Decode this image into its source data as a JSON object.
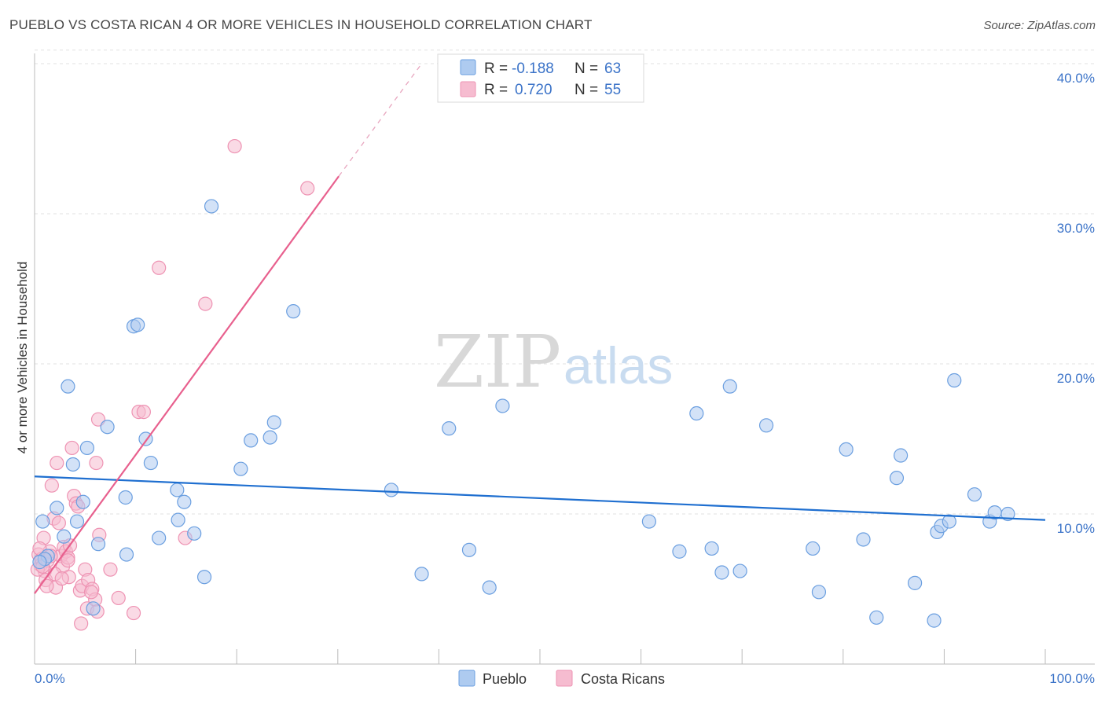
{
  "title": "PUEBLO VS COSTA RICAN 4 OR MORE VEHICLES IN HOUSEHOLD CORRELATION CHART",
  "source": "Source: ZipAtlas.com",
  "colors": {
    "pueblo_fill": "#aecbf0",
    "pueblo_stroke": "#6b9fe0",
    "pueblo_line": "#1f6fd0",
    "costa_fill": "#f6bcd0",
    "costa_stroke": "#ee93b3",
    "costa_line": "#e8608e",
    "value_text": "#3b73c8"
  },
  "legend": {
    "r_label": "R =",
    "n_label": "N =",
    "series": [
      {
        "r": "-0.188",
        "n": "63"
      },
      {
        "r": "0.720",
        "n": "55"
      }
    ]
  },
  "watermark": {
    "zip": "ZIP",
    "atlas": "atlas"
  },
  "chart_data": {
    "type": "scatter",
    "title": "PUEBLO VS COSTA RICAN 4 OR MORE VEHICLES IN HOUSEHOLD CORRELATION CHART",
    "xlabel": "",
    "ylabel": "4 or more Vehicles in Household",
    "xlim": [
      0,
      100
    ],
    "ylim": [
      0,
      42
    ],
    "x_tick_labels": [
      "0.0%",
      "100.0%"
    ],
    "y_ticks": [
      10,
      20,
      30,
      40
    ],
    "y_tick_labels": [
      "10.0%",
      "20.0%",
      "30.0%",
      "40.0%"
    ],
    "grid": true,
    "legend_position": "top-center",
    "series": [
      {
        "name": "Pueblo",
        "r": -0.188,
        "n": 63,
        "trend": {
          "x0": 0,
          "y0": 12.5,
          "x1": 100,
          "y1": 9.6
        },
        "points": [
          [
            0.8,
            9.5
          ],
          [
            1.3,
            7.2
          ],
          [
            2.2,
            10.4
          ],
          [
            2.9,
            8.5
          ],
          [
            3.3,
            18.5
          ],
          [
            3.8,
            13.3
          ],
          [
            4.2,
            9.5
          ],
          [
            4.8,
            10.8
          ],
          [
            5.2,
            14.4
          ],
          [
            6.3,
            8.0
          ],
          [
            7.2,
            15.8
          ],
          [
            9.0,
            11.1
          ],
          [
            9.1,
            7.3
          ],
          [
            9.8,
            22.5
          ],
          [
            10.2,
            22.6
          ],
          [
            11.0,
            15.0
          ],
          [
            11.5,
            13.4
          ],
          [
            12.3,
            8.4
          ],
          [
            14.1,
            11.6
          ],
          [
            14.2,
            9.6
          ],
          [
            14.8,
            10.8
          ],
          [
            15.8,
            8.7
          ],
          [
            16.8,
            5.8
          ],
          [
            17.5,
            30.5
          ],
          [
            20.4,
            13.0
          ],
          [
            21.4,
            14.9
          ],
          [
            23.3,
            15.1
          ],
          [
            23.7,
            16.1
          ],
          [
            25.6,
            23.5
          ],
          [
            35.3,
            11.6
          ],
          [
            38.3,
            6.0
          ],
          [
            41.0,
            15.7
          ],
          [
            43.0,
            7.6
          ],
          [
            45.0,
            5.1
          ],
          [
            46.3,
            17.2
          ],
          [
            60.8,
            9.5
          ],
          [
            63.8,
            7.5
          ],
          [
            65.5,
            16.7
          ],
          [
            67.0,
            7.7
          ],
          [
            68.0,
            6.1
          ],
          [
            68.8,
            18.5
          ],
          [
            69.8,
            6.2
          ],
          [
            72.4,
            15.9
          ],
          [
            77.0,
            7.7
          ],
          [
            77.6,
            4.8
          ],
          [
            80.3,
            14.3
          ],
          [
            82.0,
            8.3
          ],
          [
            83.3,
            3.1
          ],
          [
            85.3,
            12.4
          ],
          [
            85.7,
            13.9
          ],
          [
            87.1,
            5.4
          ],
          [
            89.0,
            2.9
          ],
          [
            89.3,
            8.8
          ],
          [
            89.7,
            9.2
          ],
          [
            90.5,
            9.5
          ],
          [
            91.0,
            18.9
          ],
          [
            93.0,
            11.3
          ],
          [
            94.5,
            9.5
          ],
          [
            95.0,
            10.1
          ],
          [
            96.3,
            10.0
          ],
          [
            5.8,
            3.7
          ],
          [
            1.0,
            7.0
          ],
          [
            0.5,
            6.8
          ]
        ]
      },
      {
        "name": "Costa Ricans",
        "r": 0.72,
        "n": 55,
        "trend": {
          "x0": 0,
          "y0": 4.7,
          "x1": 30.1,
          "y1": 32.5
        },
        "trend_dashed": {
          "x0": 30.1,
          "y0": 32.5,
          "x1": 38.3,
          "y1": 40.0
        },
        "points": [
          [
            0.4,
            7.3
          ],
          [
            0.6,
            6.6
          ],
          [
            0.7,
            7.0
          ],
          [
            0.9,
            8.4
          ],
          [
            1.0,
            6.2
          ],
          [
            1.1,
            5.6
          ],
          [
            1.3,
            6.9
          ],
          [
            1.5,
            7.5
          ],
          [
            1.7,
            11.9
          ],
          [
            1.9,
            9.7
          ],
          [
            2.1,
            5.1
          ],
          [
            2.2,
            13.4
          ],
          [
            2.4,
            9.4
          ],
          [
            2.6,
            7.2
          ],
          [
            2.8,
            6.5
          ],
          [
            2.9,
            7.8
          ],
          [
            3.1,
            7.5
          ],
          [
            3.3,
            7.1
          ],
          [
            3.4,
            5.8
          ],
          [
            3.5,
            7.9
          ],
          [
            3.7,
            14.4
          ],
          [
            3.9,
            11.2
          ],
          [
            4.1,
            10.7
          ],
          [
            4.3,
            10.5
          ],
          [
            4.5,
            4.9
          ],
          [
            4.7,
            5.2
          ],
          [
            5.0,
            6.3
          ],
          [
            5.2,
            3.7
          ],
          [
            5.3,
            5.6
          ],
          [
            5.7,
            5.0
          ],
          [
            6.0,
            4.3
          ],
          [
            6.2,
            3.5
          ],
          [
            6.4,
            8.6
          ],
          [
            7.5,
            6.3
          ],
          [
            8.3,
            4.4
          ],
          [
            9.8,
            3.4
          ],
          [
            10.3,
            16.8
          ],
          [
            10.8,
            16.8
          ],
          [
            12.3,
            26.4
          ],
          [
            14.9,
            8.4
          ],
          [
            16.9,
            24.0
          ],
          [
            19.8,
            34.5
          ],
          [
            27.0,
            31.7
          ],
          [
            1.2,
            5.2
          ],
          [
            2.0,
            6.0
          ],
          [
            0.3,
            6.3
          ],
          [
            4.6,
            2.7
          ],
          [
            6.1,
            13.4
          ],
          [
            6.3,
            16.3
          ],
          [
            3.3,
            6.9
          ],
          [
            0.8,
            6.5
          ],
          [
            2.7,
            5.7
          ],
          [
            1.6,
            7.2
          ],
          [
            5.6,
            4.8
          ],
          [
            0.5,
            7.7
          ]
        ]
      }
    ]
  }
}
